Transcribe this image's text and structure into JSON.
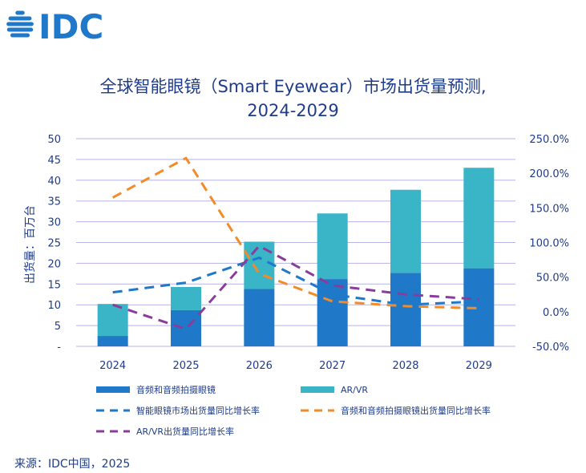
{
  "brand": {
    "logo_text": "IDC",
    "color": "#1f78c8"
  },
  "title_line1": "全球智能眼镜（Smart Eyewear）市场出货量预测,",
  "title_line2": "2024-2029",
  "source": "来源：IDC中国，2025",
  "chart_data": {
    "type": "bar",
    "stacked": true,
    "categories": [
      "2024",
      "2025",
      "2026",
      "2027",
      "2028",
      "2029"
    ],
    "ylabel": "出货量：百万台",
    "ylim": [
      0,
      50
    ],
    "y_ticks": [
      "-",
      "5",
      "10",
      "15",
      "20",
      "25",
      "30",
      "35",
      "40",
      "45",
      "50"
    ],
    "y2lim": [
      -50,
      250
    ],
    "y2_ticks": [
      "-50.0%",
      "0.0%",
      "50.0%",
      "100.0%",
      "150.0%",
      "200.0%",
      "250.0%"
    ],
    "grid": true,
    "series": [
      {
        "name": "音频和音频拍摄眼镜",
        "type": "bar",
        "axis": "left",
        "color": "#1f78c8",
        "values": [
          2.5,
          8.7,
          13.8,
          16.2,
          17.7,
          18.8
        ]
      },
      {
        "name": "AR/VR",
        "type": "bar",
        "axis": "left",
        "color": "#3ab5c8",
        "values": [
          7.7,
          5.6,
          11.4,
          15.8,
          20.0,
          24.2
        ]
      },
      {
        "name": "智能眼镜市场出货量同比增长率",
        "type": "line",
        "dash": true,
        "axis": "right",
        "color": "#1f78c8",
        "values": [
          28,
          42,
          78,
          25,
          10,
          15
        ]
      },
      {
        "name": "音频和音频拍摄眼镜出货量同比增长率",
        "type": "line",
        "dash": true,
        "axis": "right",
        "color": "#f28c28",
        "values": [
          165,
          222,
          55,
          15,
          8,
          5
        ]
      },
      {
        "name": "AR/VR出货量同比增长率",
        "type": "line",
        "dash": true,
        "axis": "right",
        "color": "#8a3c9a",
        "values": [
          10,
          -25,
          95,
          38,
          25,
          18
        ]
      }
    ],
    "legend": "bottom"
  }
}
